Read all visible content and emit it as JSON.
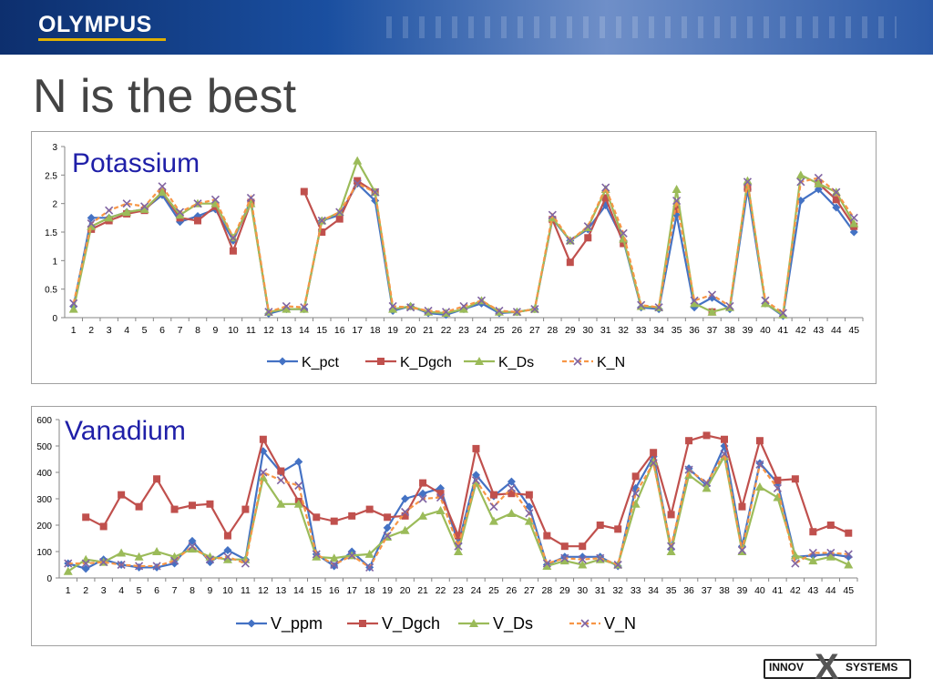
{
  "header": {
    "brand": "OLYMPUS"
  },
  "slide": {
    "title": "N is the best"
  },
  "footer": {
    "brand_left": "INNOV",
    "brand_x": "X",
    "brand_right": "SYSTEMS"
  },
  "colors": {
    "series1": "#4472c4",
    "series2": "#c0504d",
    "series3": "#9bbb59",
    "series4_line": "#f79646",
    "series4_marker": "#8064a2"
  },
  "chart_data": [
    {
      "type": "line",
      "panel_label": "Potassium",
      "title": "",
      "xlabel": "",
      "ylabel": "",
      "ylim": [
        0,
        3
      ],
      "yticks": [
        "0",
        "0.5",
        "1",
        "1.5",
        "2",
        "2.5",
        "3"
      ],
      "categories": [
        "1",
        "2",
        "3",
        "4",
        "5",
        "6",
        "7",
        "8",
        "9",
        "10",
        "11",
        "12",
        "13",
        "14",
        "15",
        "16",
        "17",
        "18",
        "19",
        "20",
        "21",
        "22",
        "23",
        "24",
        "25",
        "26",
        "27",
        "28",
        "29",
        "30",
        "31",
        "32",
        "33",
        "34",
        "35",
        "36",
        "37",
        "38",
        "39",
        "40",
        "41",
        "42",
        "43",
        "44",
        "45"
      ],
      "grid": "none",
      "legend": "bottom",
      "series": [
        {
          "name": "K_pct",
          "values": [
            0.2,
            1.75,
            1.75,
            1.85,
            1.9,
            2.15,
            1.68,
            1.78,
            1.9,
            1.35,
            2.05,
            0.07,
            0.15,
            0.15,
            1.7,
            1.8,
            2.35,
            2.05,
            0.12,
            0.2,
            0.08,
            0.05,
            0.15,
            0.25,
            0.08,
            0.1,
            0.15,
            1.73,
            1.35,
            1.55,
            1.97,
            1.35,
            0.18,
            0.15,
            1.8,
            0.18,
            0.35,
            0.15,
            2.25,
            0.25,
            0.03,
            2.05,
            2.25,
            1.93,
            1.5
          ]
        },
        {
          "name": "K_Dgch",
          "values": [
            null,
            1.55,
            1.7,
            1.82,
            1.88,
            2.2,
            1.75,
            1.7,
            1.95,
            1.17,
            2.02,
            null,
            null,
            2.21,
            1.5,
            1.73,
            2.4,
            2.2,
            null,
            null,
            null,
            null,
            null,
            null,
            null,
            null,
            null,
            1.72,
            0.97,
            1.4,
            2.1,
            1.3,
            null,
            null,
            1.9,
            null,
            0.1,
            null,
            2.27,
            null,
            null,
            null,
            2.35,
            2.07,
            1.6
          ]
        },
        {
          "name": "K_Ds",
          "values": [
            0.15,
            1.6,
            1.75,
            1.85,
            1.9,
            2.2,
            1.8,
            2.0,
            2.0,
            1.4,
            2.0,
            0.1,
            0.15,
            0.15,
            1.7,
            1.85,
            2.75,
            2.2,
            0.15,
            0.2,
            0.1,
            0.08,
            0.15,
            0.3,
            0.1,
            0.1,
            0.15,
            1.75,
            1.35,
            1.58,
            2.25,
            1.38,
            0.2,
            0.18,
            2.25,
            0.25,
            0.1,
            0.18,
            2.4,
            0.25,
            0.05,
            2.5,
            2.35,
            2.2,
            1.65
          ]
        },
        {
          "name": "K_N",
          "values": [
            0.25,
            1.65,
            1.88,
            2.0,
            1.95,
            2.3,
            1.85,
            2.0,
            2.07,
            1.4,
            2.1,
            0.1,
            0.2,
            0.18,
            1.7,
            1.85,
            2.35,
            2.2,
            0.2,
            0.18,
            0.12,
            0.1,
            0.2,
            0.3,
            0.12,
            0.1,
            0.15,
            1.8,
            1.35,
            1.6,
            2.28,
            1.48,
            0.22,
            0.18,
            2.05,
            0.3,
            0.4,
            0.2,
            2.38,
            0.3,
            0.08,
            2.38,
            2.45,
            2.2,
            1.75
          ]
        }
      ]
    },
    {
      "type": "line",
      "panel_label": "Vanadium",
      "title": "",
      "xlabel": "",
      "ylabel": "",
      "ylim": [
        0,
        600
      ],
      "yticks": [
        "0",
        "100",
        "200",
        "300",
        "400",
        "500",
        "600"
      ],
      "categories": [
        "1",
        "2",
        "3",
        "4",
        "5",
        "6",
        "7",
        "8",
        "9",
        "10",
        "11",
        "12",
        "13",
        "14",
        "15",
        "16",
        "17",
        "18",
        "19",
        "20",
        "21",
        "22",
        "23",
        "24",
        "25",
        "26",
        "27",
        "28",
        "29",
        "30",
        "31",
        "32",
        "33",
        "34",
        "35",
        "36",
        "37",
        "38",
        "39",
        "40",
        "41",
        "42",
        "43",
        "44",
        "45"
      ],
      "grid": "none",
      "legend": "bottom",
      "series": [
        {
          "name": "V_ppm",
          "values": [
            55,
            35,
            70,
            50,
            40,
            40,
            55,
            140,
            60,
            105,
            70,
            480,
            400,
            440,
            90,
            45,
            100,
            40,
            190,
            300,
            320,
            340,
            130,
            390,
            310,
            365,
            270,
            50,
            80,
            80,
            80,
            45,
            340,
            460,
            110,
            415,
            350,
            500,
            120,
            435,
            360,
            80,
            85,
            90,
            80
          ]
        },
        {
          "name": "V_Dgch",
          "values": [
            null,
            230,
            195,
            315,
            270,
            375,
            260,
            275,
            280,
            160,
            260,
            525,
            405,
            290,
            230,
            215,
            235,
            260,
            230,
            235,
            360,
            320,
            160,
            490,
            315,
            320,
            315,
            160,
            120,
            120,
            200,
            185,
            385,
            475,
            240,
            520,
            540,
            525,
            270,
            520,
            370,
            375,
            175,
            200,
            170
          ]
        },
        {
          "name": "V_Ds",
          "values": [
            25,
            70,
            60,
            95,
            80,
            100,
            80,
            110,
            80,
            70,
            70,
            380,
            280,
            280,
            80,
            75,
            85,
            90,
            155,
            180,
            235,
            255,
            100,
            360,
            215,
            245,
            215,
            45,
            65,
            50,
            70,
            50,
            280,
            440,
            100,
            390,
            340,
            460,
            100,
            345,
            305,
            85,
            65,
            80,
            50
          ]
        },
        {
          "name": "V_N",
          "values": [
            55,
            55,
            60,
            50,
            45,
            45,
            65,
            120,
            70,
            80,
            55,
            400,
            370,
            350,
            90,
            50,
            85,
            40,
            160,
            250,
            300,
            305,
            120,
            370,
            270,
            340,
            245,
            55,
            75,
            70,
            75,
            50,
            320,
            435,
            120,
            410,
            360,
            470,
            105,
            430,
            340,
            55,
            95,
            95,
            90
          ]
        }
      ]
    }
  ]
}
